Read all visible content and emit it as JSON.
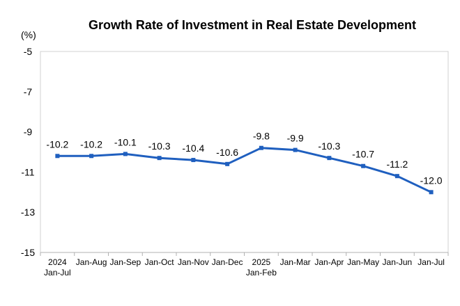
{
  "chart_data": {
    "type": "line",
    "title": "Growth Rate of Investment in Real Estate Development",
    "unit_label": "(%)",
    "xlabel": "",
    "ylabel": "(%)",
    "ylim": [
      -15,
      -5
    ],
    "yticks": [
      -5,
      -7,
      -9,
      -11,
      -13,
      -15
    ],
    "ytick_labels": [
      "-5",
      "-7",
      "-9",
      "-11",
      "-13",
      "-15"
    ],
    "grid": false,
    "categories": [
      [
        "2024",
        "Jan-Jul"
      ],
      [
        "Jan-Aug"
      ],
      [
        "Jan-Sep"
      ],
      [
        "Jan-Oct"
      ],
      [
        "Jan-Nov"
      ],
      [
        "Jan-Dec"
      ],
      [
        "2025",
        "Jan-Feb"
      ],
      [
        "Jan-Mar"
      ],
      [
        "Jan-Apr"
      ],
      [
        "Jan-May"
      ],
      [
        "Jan-Jun"
      ],
      [
        "Jan-Jul"
      ]
    ],
    "series": [
      {
        "name": "Growth Rate of Investment in Real Estate Development",
        "color": "#1f5fbf",
        "values": [
          -10.2,
          -10.2,
          -10.1,
          -10.3,
          -10.4,
          -10.6,
          -9.8,
          -9.9,
          -10.3,
          -10.7,
          -11.2,
          -12.0
        ],
        "labels": [
          "-10.2",
          "-10.2",
          "-10.1",
          "-10.3",
          "-10.4",
          "-10.6",
          "-9.8",
          "-9.9",
          "-10.3",
          "-10.7",
          "-11.2",
          "-12.0"
        ]
      }
    ]
  }
}
